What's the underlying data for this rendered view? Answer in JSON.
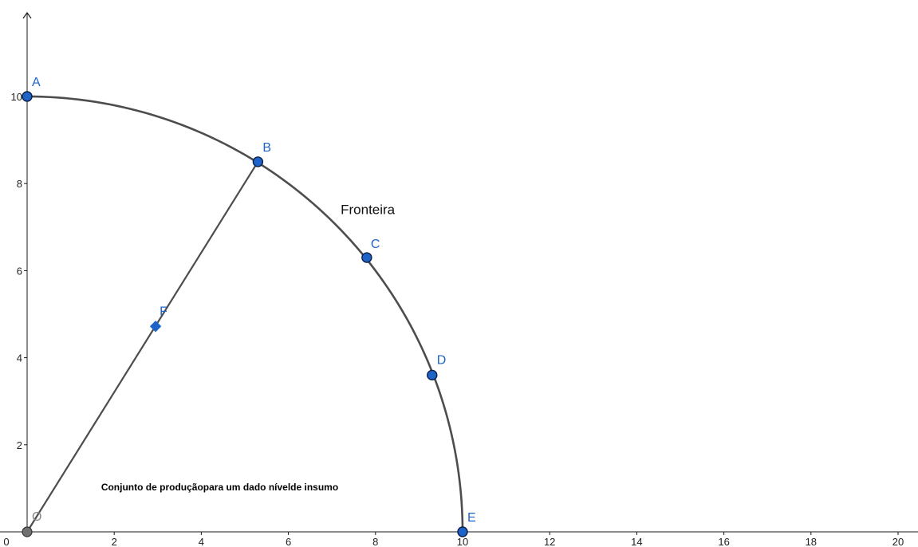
{
  "colors": {
    "axis": "#1a1a1a",
    "curve": "#4d4d4d",
    "point_fill": "#1e64c8",
    "point_stroke": "#0a1e46",
    "label": "#1e64c8",
    "origin_fill": "#707070",
    "origin_label": "#888888"
  },
  "chart_data": {
    "type": "scatter",
    "title": "",
    "xlabel": "",
    "ylabel": "",
    "xlim": [
      0,
      20.7
    ],
    "ylim": [
      0,
      11.5
    ],
    "grid": false,
    "x_ticks": [
      {
        "value": 2,
        "label": "2"
      },
      {
        "value": 4,
        "label": "4"
      },
      {
        "value": 6,
        "label": "6"
      },
      {
        "value": 8,
        "label": "8"
      },
      {
        "value": 10,
        "label": "10"
      },
      {
        "value": 12,
        "label": "12"
      },
      {
        "value": 14,
        "label": "14"
      },
      {
        "value": 16,
        "label": "16"
      },
      {
        "value": 18,
        "label": "18"
      },
      {
        "value": 20,
        "label": "20"
      }
    ],
    "y_ticks": [
      {
        "value": 2,
        "label": "2"
      },
      {
        "value": 4,
        "label": "4"
      },
      {
        "value": 6,
        "label": "6"
      },
      {
        "value": 8,
        "label": "8"
      },
      {
        "value": 10,
        "label": "10"
      }
    ],
    "origin_label": "0",
    "frontier": {
      "type": "quarter-circle",
      "center": [
        0,
        0
      ],
      "radius": 10
    },
    "segment": {
      "from": "O",
      "to": "B"
    },
    "points": [
      {
        "name": "A",
        "x": 0,
        "y": 10,
        "shape": "circle"
      },
      {
        "name": "B",
        "x": 5.3,
        "y": 8.5,
        "shape": "circle"
      },
      {
        "name": "C",
        "x": 7.8,
        "y": 6.3,
        "shape": "circle"
      },
      {
        "name": "D",
        "x": 9.3,
        "y": 3.6,
        "shape": "circle"
      },
      {
        "name": "E",
        "x": 10,
        "y": 0,
        "shape": "circle"
      },
      {
        "name": "F",
        "x": 2.95,
        "y": 4.72,
        "shape": "diamond"
      },
      {
        "name": "O",
        "x": 0,
        "y": 0,
        "shape": "circle-gray"
      }
    ],
    "annotations": [
      {
        "id": "fronteira",
        "text": "Fronteira",
        "x": 7.2,
        "y": 7.3
      },
      {
        "id": "caption",
        "text": "Conjunto de produçãopara um dado nívelde insumo",
        "x": 1.7,
        "y": 0.95
      }
    ]
  }
}
